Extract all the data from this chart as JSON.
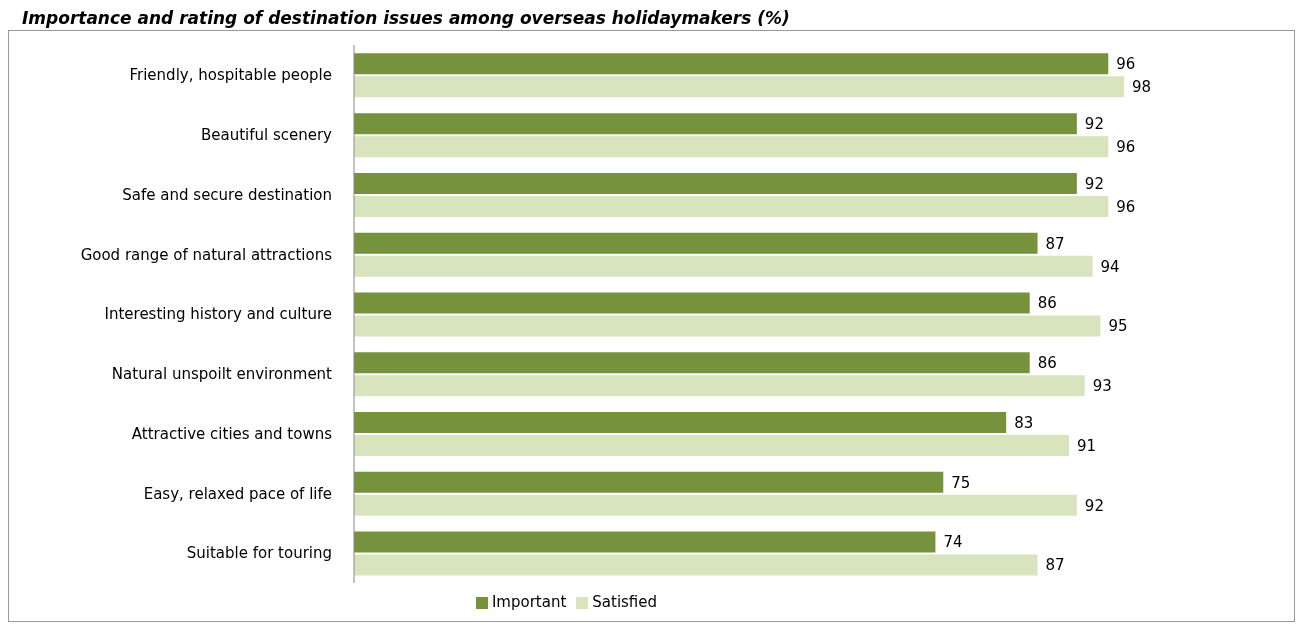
{
  "chart_data": {
    "type": "bar",
    "orientation": "horizontal",
    "title": "Importance and rating of destination issues among overseas holidaymakers (%)",
    "categories": [
      "Friendly, hospitable people",
      "Beautiful scenery",
      "Safe and secure destination",
      "Good range of natural attractions",
      "Interesting history and culture",
      "Natural unspoilt environment",
      "Attractive cities and towns",
      "Easy, relaxed pace of life",
      "Suitable for touring"
    ],
    "series": [
      {
        "name": "Important",
        "color": "#76923c",
        "values": [
          96,
          92,
          92,
          87,
          86,
          86,
          83,
          75,
          74
        ]
      },
      {
        "name": "Satisfied",
        "color": "#d7e4bd",
        "values": [
          98,
          96,
          96,
          94,
          95,
          93,
          91,
          92,
          87
        ]
      }
    ],
    "data_labels": true,
    "legend": "bottom",
    "grid": false
  }
}
